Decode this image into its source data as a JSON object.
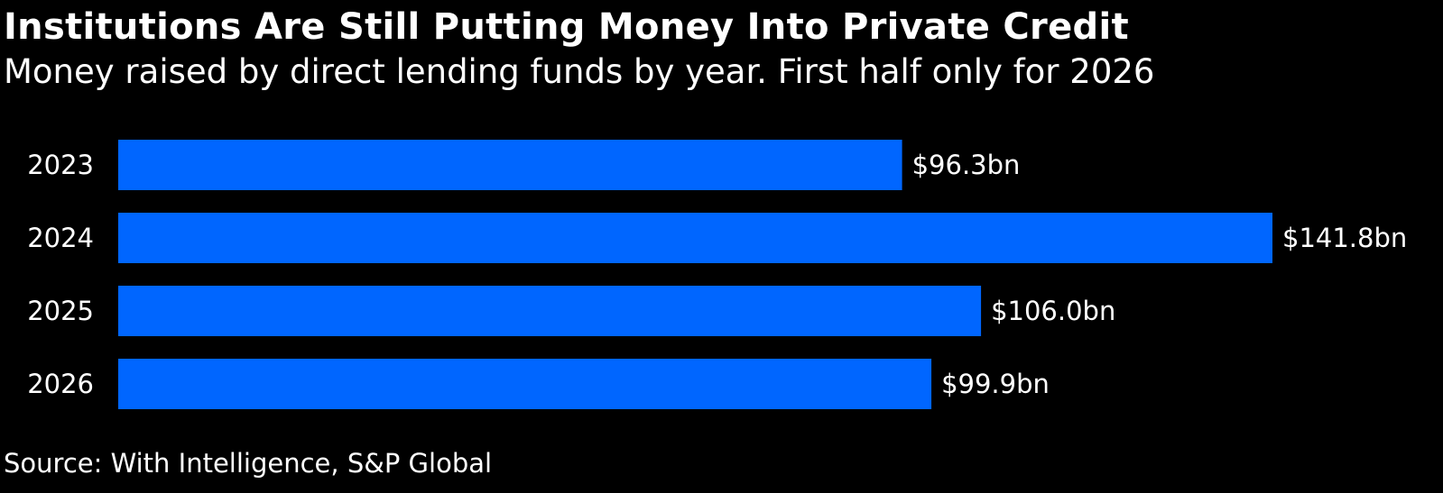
{
  "header": {
    "title": "Institutions Are Still Putting Money Into Private Credit",
    "subtitle": "Money raised by direct lending funds by year. First half only for 2026"
  },
  "footer": {
    "source": "Source: With Intelligence, S&P Global"
  },
  "colors": {
    "background": "#000000",
    "bar": "#0066ff",
    "text": "#ffffff"
  },
  "chart_data": {
    "type": "bar",
    "orientation": "horizontal",
    "title": "Institutions Are Still Putting Money Into Private Credit",
    "subtitle": "Money raised by direct lending funds by year. First half only for 2026",
    "categories": [
      "2023",
      "2024",
      "2025",
      "2026"
    ],
    "values": [
      96.3,
      141.8,
      106.0,
      99.9
    ],
    "data_labels": [
      "$96.3bn",
      "$141.8bn",
      "$106.0bn",
      "$99.9bn"
    ],
    "unit": "$bn",
    "xlim": [
      0,
      141.8
    ],
    "grid": false,
    "legend": "none"
  }
}
